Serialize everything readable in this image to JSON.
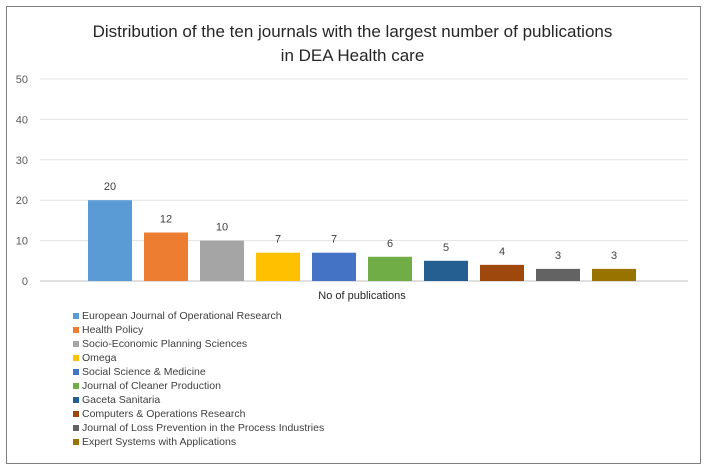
{
  "chart_data": {
    "type": "bar",
    "title": "Distribution of the ten journals with the largest number of publications in DEA Health care",
    "title_lines": [
      "Distribution of the ten journals with the largest number of publications",
      "in DEA Health care"
    ],
    "xlabel": "No of publications",
    "ylabel": "",
    "ylim": [
      0,
      50
    ],
    "yticks": [
      0,
      10,
      20,
      30,
      40,
      50
    ],
    "grid": true,
    "legend_position": "bottom-left",
    "series": [
      {
        "name": "European Journal of Operational Research",
        "value": 20,
        "color": "#5b9bd5"
      },
      {
        "name": "Health Policy",
        "value": 12,
        "color": "#ed7d31"
      },
      {
        "name": "Socio-Economic Planning Sciences",
        "value": 10,
        "color": "#a5a5a5"
      },
      {
        "name": "Omega",
        "value": 7,
        "color": "#ffc000"
      },
      {
        "name": "Social Science & Medicine",
        "value": 7,
        "color": "#4472c4"
      },
      {
        "name": "Journal of Cleaner Production",
        "value": 6,
        "color": "#70ad47"
      },
      {
        "name": "Gaceta Sanitaria",
        "value": 5,
        "color": "#255e91"
      },
      {
        "name": "Computers & Operations Research",
        "value": 4,
        "color": "#9e480e"
      },
      {
        "name": "Journal of Loss Prevention in the Process Industries",
        "value": 3,
        "color": "#636363"
      },
      {
        "name": "Expert Systems with Applications",
        "value": 3,
        "color": "#997300"
      }
    ]
  }
}
